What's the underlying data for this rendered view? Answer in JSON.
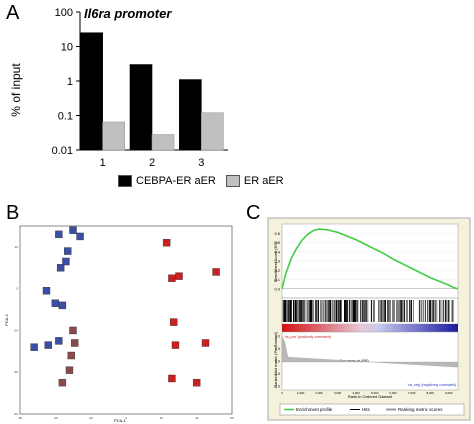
{
  "panels": {
    "a": {
      "letter": "A",
      "title": "Il6ra promoter",
      "ylabel": "% of input"
    },
    "b": {
      "letter": "B",
      "xlabel": "PCA-1",
      "ylabel": "PCA-2"
    },
    "c": {
      "letter": "C"
    }
  },
  "chart_data": [
    {
      "type": "bar",
      "title": "Il6ra promoter",
      "xlabel": "",
      "ylabel": "% of input",
      "yscale": "log",
      "ylim": [
        0.01,
        100
      ],
      "yticks": [
        "100",
        "10",
        "1",
        "0.1",
        "0.01"
      ],
      "categories": [
        "1",
        "2",
        "3"
      ],
      "series": [
        {
          "name": "CEBPA-ER aER",
          "color": "#000000",
          "values": [
            25,
            3,
            1.1
          ]
        },
        {
          "name": "ER aER",
          "color": "#c0c0c0",
          "values": [
            0.065,
            0.028,
            0.12
          ]
        }
      ],
      "legend": "bottom"
    },
    {
      "type": "scatter",
      "xlabel": "PCA-1",
      "ylabel": "PCA-2",
      "xlim": [
        -60,
        60
      ],
      "ylim": [
        -60,
        30
      ],
      "xticks": [
        "-60",
        "-40",
        "-20",
        "0",
        "20",
        "40",
        "60"
      ],
      "yticks": [
        "-60",
        "-40",
        "-20",
        "0",
        "20"
      ],
      "series": [
        {
          "name": "",
          "color": "#3a4ea6",
          "points": [
            [
              -38,
              26
            ],
            [
              -30,
              28
            ],
            [
              -26,
              25
            ],
            [
              -33,
              18
            ],
            [
              -34,
              13
            ],
            [
              -37,
              10
            ],
            [
              -45,
              -1
            ],
            [
              -40,
              -7
            ],
            [
              -36,
              -8
            ],
            [
              -52,
              -28
            ],
            [
              -44,
              -27
            ],
            [
              -38,
              -25
            ]
          ]
        },
        {
          "name": "",
          "color": "#8a4a4a",
          "points": [
            [
              -30,
              -20
            ],
            [
              -29,
              -26
            ],
            [
              -31,
              -32
            ],
            [
              -32,
              -39
            ],
            [
              -36,
              -45
            ]
          ]
        },
        {
          "name": "",
          "color": "#cc2020",
          "points": [
            [
              23,
              22
            ],
            [
              26,
              5
            ],
            [
              30,
              6
            ],
            [
              51,
              8
            ],
            [
              27,
              -16
            ],
            [
              45,
              -26
            ],
            [
              28,
              -27
            ],
            [
              26,
              -43
            ],
            [
              40,
              -45
            ]
          ]
        }
      ]
    },
    {
      "type": "line",
      "title": "",
      "ylabel": "Enrichment score (ES)",
      "xlabel": "Rank in Ordered Dataset",
      "ylim": [
        -0.1,
        0.7
      ],
      "yticks": [
        "0.6",
        "0.5",
        "0.4",
        "0.3",
        "0.2",
        "0.1",
        "0.0"
      ],
      "xticks": [
        "0",
        "1,000",
        "2,000",
        "3,000",
        "4,000",
        "5,000",
        "6,000",
        "7,000",
        "8,000",
        "9,000"
      ],
      "series": [
        {
          "name": "Enrichment profile",
          "color": "#44cc44",
          "x": [
            0,
            200,
            500,
            800,
            1100,
            1400,
            1700,
            2000,
            2500,
            3000,
            3500,
            4000,
            4500,
            5000,
            5500,
            6000,
            6500,
            7000,
            7500,
            8000,
            8500,
            9000,
            9300,
            9500
          ],
          "y": [
            0.0,
            0.16,
            0.33,
            0.44,
            0.53,
            0.59,
            0.63,
            0.645,
            0.635,
            0.61,
            0.57,
            0.53,
            0.48,
            0.43,
            0.38,
            0.32,
            0.27,
            0.22,
            0.17,
            0.12,
            0.08,
            0.04,
            0.01,
            0.0
          ]
        }
      ],
      "hits_label": "Hits",
      "metric_label": "Ranking metric scores",
      "metric_ylabel": "Ranked list metric (PreRanked)",
      "pos_label": "'na_pos' (positively correlated)",
      "neg_label": "'na_neg' (negatively correlated)",
      "zero_cross": "Zero cross at 4550",
      "metric_yticks": [
        "1.0",
        "0.5",
        "0.0",
        "-0.5",
        "-1.0"
      ]
    }
  ]
}
